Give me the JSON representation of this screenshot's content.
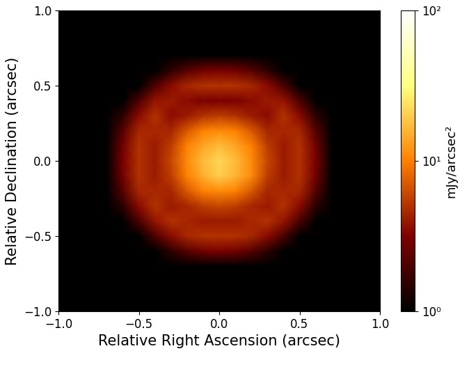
{
  "chart_data": {
    "type": "heatmap",
    "xlabel": "Relative Right Ascension (arcsec)",
    "ylabel": "Relative Declination (arcsec)",
    "x": [
      -1.0,
      -0.9,
      -0.8,
      -0.7,
      -0.6,
      -0.5,
      -0.4,
      -0.3,
      -0.2,
      -0.1,
      0.0,
      0.1,
      0.2,
      0.3,
      0.4,
      0.5,
      0.6,
      0.7,
      0.8,
      0.9,
      1.0
    ],
    "y": [
      -1.0,
      -0.9,
      -0.8,
      -0.7,
      -0.6,
      -0.5,
      -0.4,
      -0.3,
      -0.2,
      -0.1,
      0.0,
      0.1,
      0.2,
      0.3,
      0.4,
      0.5,
      0.6,
      0.7,
      0.8,
      0.9,
      1.0
    ],
    "z": [
      [
        1,
        1,
        1,
        1,
        1,
        1,
        1,
        1,
        1,
        1,
        1,
        1,
        1,
        1,
        1,
        1,
        1,
        1,
        1,
        1,
        1
      ],
      [
        1,
        1,
        1,
        1,
        1,
        1,
        1,
        1,
        1,
        1,
        1,
        1,
        1,
        1,
        1,
        1,
        1,
        1,
        1,
        1,
        1
      ],
      [
        1,
        1,
        1,
        1,
        1,
        1,
        1,
        1,
        1,
        1,
        1,
        1,
        1,
        1,
        1,
        1,
        1,
        1,
        1,
        1,
        1
      ],
      [
        1,
        1,
        1,
        1,
        1,
        1,
        1,
        1,
        1,
        1,
        1,
        1,
        1,
        1,
        1,
        1,
        1,
        1,
        1,
        1,
        1
      ],
      [
        1,
        1,
        1,
        1,
        1,
        1,
        1,
        1.5,
        2.2,
        2.8,
        3,
        2.8,
        2.2,
        1.5,
        1,
        1,
        1,
        1,
        1,
        1,
        1
      ],
      [
        1,
        1,
        1,
        1,
        1,
        1,
        2,
        3.5,
        4.5,
        5,
        5,
        5,
        4.5,
        3.5,
        2,
        1,
        1,
        1,
        1,
        1,
        1
      ],
      [
        1,
        1,
        1,
        1,
        1,
        2,
        3.8,
        5,
        4.5,
        4,
        4,
        4,
        4.5,
        5,
        3.8,
        2,
        1,
        1,
        1,
        1,
        1
      ],
      [
        1,
        1,
        1,
        1,
        1.5,
        3.5,
        5,
        4,
        4.5,
        5.5,
        6,
        5.5,
        4.5,
        4,
        5,
        3.5,
        1.5,
        1,
        1,
        1,
        1
      ],
      [
        1,
        1,
        1,
        1,
        2.2,
        4.5,
        4.5,
        4.5,
        7,
        10,
        11,
        10,
        7,
        4.5,
        4.5,
        4.5,
        2.2,
        1,
        1,
        1,
        1
      ],
      [
        1,
        1,
        1,
        1,
        2.8,
        5,
        4,
        5.5,
        10,
        15,
        20,
        16,
        11,
        5.5,
        4,
        5,
        2.8,
        1,
        1,
        1,
        1
      ],
      [
        1,
        1,
        1,
        1,
        3,
        5,
        4,
        6,
        11,
        17,
        22,
        17,
        11,
        6,
        4,
        5,
        3,
        1,
        1,
        1,
        1
      ],
      [
        1,
        1,
        1,
        1,
        2.8,
        5,
        4,
        5.5,
        10,
        14,
        17,
        14,
        10,
        5.5,
        4,
        5,
        2.8,
        1,
        1,
        1,
        1
      ],
      [
        1,
        1,
        1,
        1,
        2.2,
        4.5,
        4.5,
        4.5,
        7,
        10,
        11,
        10,
        7,
        4.5,
        4.5,
        4.5,
        2.2,
        1,
        1,
        1,
        1
      ],
      [
        1,
        1,
        1,
        1,
        1.5,
        3.5,
        5,
        3.5,
        4,
        5,
        5.5,
        5,
        4,
        3.5,
        5,
        3.5,
        1.5,
        1,
        1,
        1,
        1
      ],
      [
        1,
        1,
        1,
        1,
        1,
        2,
        3.8,
        4,
        3.5,
        3,
        3,
        3,
        3.5,
        4,
        3.8,
        2,
        1,
        1,
        1,
        1,
        1
      ],
      [
        1,
        1,
        1,
        1,
        1,
        1,
        2,
        3.5,
        4.5,
        5,
        5,
        5,
        4.5,
        3.5,
        2,
        1,
        1,
        1,
        1,
        1,
        1
      ],
      [
        1,
        1,
        1,
        1,
        1,
        1,
        1,
        1.5,
        2.2,
        2.8,
        3,
        2.8,
        2.2,
        1.5,
        1,
        1,
        1,
        1,
        1,
        1,
        1
      ],
      [
        1,
        1,
        1,
        1,
        1,
        1,
        1,
        1,
        1,
        1,
        1,
        1,
        1,
        1,
        1,
        1,
        1,
        1,
        1,
        1,
        1
      ],
      [
        1,
        1,
        1,
        1,
        1,
        1,
        1,
        1,
        1,
        1,
        1,
        1,
        1,
        1,
        1,
        1,
        1,
        1,
        1,
        1,
        1
      ],
      [
        1,
        1,
        1,
        1,
        1,
        1,
        1,
        1,
        1,
        1,
        1,
        1,
        1,
        1,
        1,
        1,
        1,
        1,
        1,
        1,
        1
      ],
      [
        1,
        1,
        1,
        1,
        1,
        1,
        1,
        1,
        1,
        1,
        1,
        1,
        1,
        1,
        1,
        1,
        1,
        1,
        1,
        1,
        1
      ]
    ],
    "xlim": [
      -1.0,
      1.0
    ],
    "ylim": [
      -1.0,
      1.0
    ],
    "xticks": [
      {
        "value": -1.0,
        "label": "−1.0"
      },
      {
        "value": -0.5,
        "label": "−0.5"
      },
      {
        "value": 0.0,
        "label": "0.0"
      },
      {
        "value": 0.5,
        "label": "0.5"
      },
      {
        "value": 1.0,
        "label": "1.0"
      }
    ],
    "yticks": [
      {
        "value": -1.0,
        "label": "−1.0"
      },
      {
        "value": -0.5,
        "label": "−0.5"
      },
      {
        "value": 0.0,
        "label": "0.0"
      },
      {
        "value": 0.5,
        "label": "0.5"
      },
      {
        "value": 1.0,
        "label": "1.0"
      }
    ],
    "colorbar": {
      "label": "mJy/arcsec²",
      "range": [
        1,
        100
      ],
      "log": true,
      "ticks": [
        {
          "value": 1,
          "label": "10⁰"
        },
        {
          "value": 10,
          "label": "10¹"
        },
        {
          "value": 100,
          "label": "10²"
        }
      ]
    }
  }
}
